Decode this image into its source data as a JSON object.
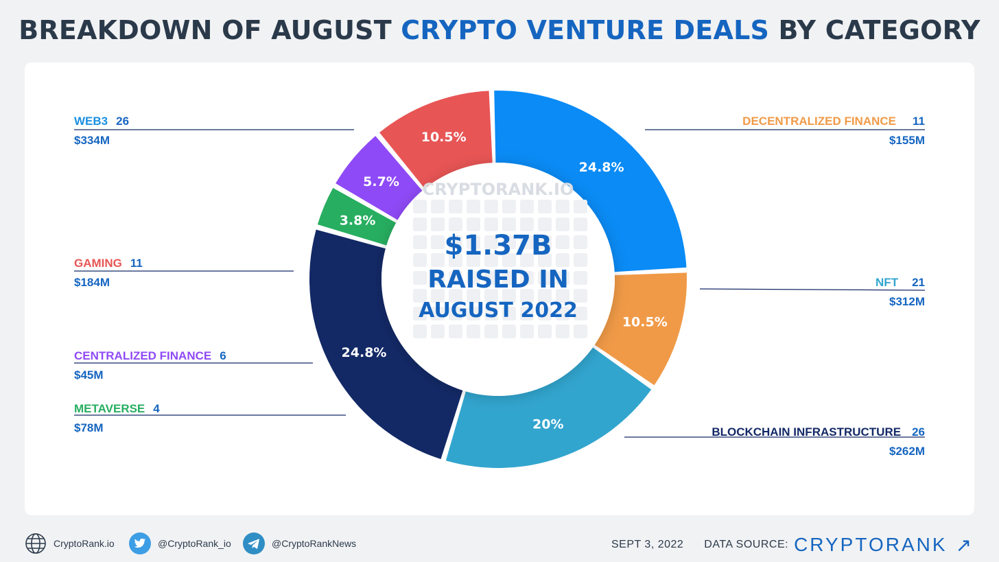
{
  "title": {
    "part1": "BREAKDOWN OF AUGUST ",
    "accent": "CRYPTO VENTURE DEALS",
    "part2": " BY CATEGORY"
  },
  "center": {
    "watermark": "CRYPTORANK.IO",
    "amount": "$1.37B",
    "line2": "RAISED IN",
    "line3": "AUGUST 2022"
  },
  "chart_data": {
    "type": "pie",
    "title": "BREAKDOWN OF AUGUST CRYPTO VENTURE DEALS BY CATEGORY",
    "slices": [
      {
        "name": "WEB3",
        "deals": "26",
        "amount": "$334M",
        "percent": 24.8,
        "percent_label": "24.8%",
        "color": "#0a8bf5",
        "label_color": "#1a8fe0"
      },
      {
        "name": "DECENTRALIZED FINANCE",
        "deals": "11",
        "amount": "$155M",
        "percent": 10.5,
        "percent_label": "10.5%",
        "color": "#f09a47",
        "label_color": "#f09a47"
      },
      {
        "name": "NFT",
        "deals": "21",
        "amount": "$312M",
        "percent": 20,
        "percent_label": "20%",
        "color": "#32a5ce",
        "label_color": "#32a5ce"
      },
      {
        "name": "BLOCKCHAIN INFRASTRUCTURE",
        "deals": "26",
        "amount": "$262M",
        "percent": 24.8,
        "percent_label": "24.8%",
        "color": "#132966",
        "label_color": "#132966"
      },
      {
        "name": "METAVERSE",
        "deals": "4",
        "amount": "$78M",
        "percent": 3.8,
        "percent_label": "3.8%",
        "color": "#27ae60",
        "label_color": "#27ae60"
      },
      {
        "name": "CENTRALIZED FINANCE",
        "deals": "6",
        "amount": "$45M",
        "percent": 5.7,
        "percent_label": "5.7%",
        "color": "#8f4af7",
        "label_color": "#8f4af7"
      },
      {
        "name": "GAMING",
        "deals": "11",
        "amount": "$184M",
        "percent": 10.5,
        "percent_label": "10.5%",
        "color": "#e85555",
        "label_color": "#e85555"
      }
    ]
  },
  "footer": {
    "website": "CryptoRank.io",
    "twitter": "@CryptoRank_io",
    "telegram": "@CryptoRankNews",
    "date": "SEPT 3, 2022",
    "data_source_label": "DATA SOURCE:",
    "brand": "CRYPTORANK",
    "brand_arrow": "↗"
  }
}
